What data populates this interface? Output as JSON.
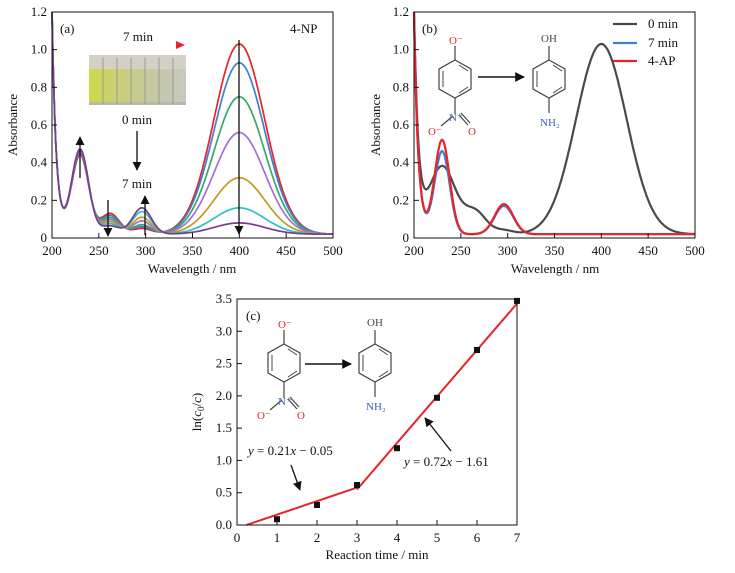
{
  "chart_data": [
    {
      "type": "line",
      "panel_label": "(a)",
      "corner_label": "4-NP",
      "xlabel": "Wavelength / nm",
      "ylabel": "Absorbance",
      "xlim": [
        200,
        500
      ],
      "ylim": [
        0,
        1.2
      ],
      "x_ticks": [
        "200",
        "250",
        "300",
        "350",
        "400",
        "450",
        "500"
      ],
      "y_ticks": [
        "0",
        "0.2",
        "0.4",
        "0.6",
        "0.8",
        "1.0",
        "1.2"
      ],
      "series": [
        {
          "color": "#e8232a",
          "peak400": 1.01,
          "s230": 0.42,
          "s295": 0.03
        },
        {
          "color": "#3f7fd0",
          "peak400": 0.91,
          "s230": 0.43,
          "s295": 0.04
        },
        {
          "color": "#3aa66a",
          "peak400": 0.73,
          "s230": 0.44,
          "s295": 0.05
        },
        {
          "color": "#a46fd2",
          "peak400": 0.54,
          "s230": 0.44,
          "s295": 0.07
        },
        {
          "color": "#c39a1f",
          "peak400": 0.3,
          "s230": 0.45,
          "s295": 0.09
        },
        {
          "color": "#28c2c6",
          "peak400": 0.14,
          "s230": 0.45,
          "s295": 0.12
        },
        {
          "color": "#7a3c8a",
          "peak400": 0.06,
          "s230": 0.45,
          "s295": 0.14
        }
      ],
      "annotations": {
        "time_arrow": "7 min",
        "start_time": "0 min",
        "end_time": "7 min"
      },
      "grid": false
    },
    {
      "type": "line",
      "panel_label": "(b)",
      "xlabel": "Wavelength / nm",
      "ylabel": "Absorbance",
      "xlim": [
        200,
        500
      ],
      "ylim": [
        0,
        1.2
      ],
      "x_ticks": [
        "200",
        "250",
        "300",
        "350",
        "400",
        "450",
        "500"
      ],
      "y_ticks": [
        "0",
        "0.2",
        "0.4",
        "0.6",
        "0.8",
        "1.0",
        "1.2"
      ],
      "legend_position": "top-right",
      "series": [
        {
          "name": "0 min",
          "color": "#4a4a4a",
          "peak400": 1.01,
          "p230": 0.36,
          "p295": 0.02
        },
        {
          "name": "7 min",
          "color": "#3f7fd0",
          "peak400": 0.0,
          "p230": 0.44,
          "p295": 0.15
        },
        {
          "name": "4-AP",
          "color": "#e8232a",
          "peak400": 0.0,
          "p230": 0.5,
          "p295": 0.16
        }
      ],
      "grid": false
    },
    {
      "type": "scatter",
      "panel_label": "(c)",
      "xlabel": "Reaction time / min",
      "ylabel": "ln(c0/c)",
      "xlim": [
        0,
        7
      ],
      "ylim": [
        0,
        3.5
      ],
      "x_ticks": [
        "0",
        "1",
        "2",
        "3",
        "4",
        "5",
        "6",
        "7"
      ],
      "y_ticks": [
        "0.0",
        "0.5",
        "1.0",
        "1.5",
        "2.0",
        "2.5",
        "3.0",
        "3.5"
      ],
      "points": [
        {
          "x": 1,
          "y": 0.09
        },
        {
          "x": 2,
          "y": 0.31
        },
        {
          "x": 3,
          "y": 0.62
        },
        {
          "x": 4,
          "y": 1.19
        },
        {
          "x": 5,
          "y": 1.97
        },
        {
          "x": 6,
          "y": 2.71
        },
        {
          "x": 7,
          "y": 3.47
        }
      ],
      "fits": [
        {
          "equation_parts": [
            "y",
            " = 0.21",
            "x",
            " − 0.05"
          ],
          "slope": 0.21,
          "intercept": -0.05,
          "x_range": [
            0.24,
            3
          ]
        },
        {
          "equation_parts": [
            "y",
            " = 0.72",
            "x",
            " − 1.61"
          ],
          "slope": 0.72,
          "intercept": -1.61,
          "x_range": [
            3,
            7
          ]
        }
      ],
      "grid": false
    }
  ],
  "molecules": {
    "nitro_o_minus": "O⁻",
    "n_plus": "N⁺",
    "n_o": "O",
    "n_o_minus": "O⁻",
    "oh": "OH",
    "nh2": "NH₂"
  },
  "colors": {
    "axis": "#111111",
    "fit_line": "#e8232a",
    "nitro_atoms": "#e8232a",
    "amine_atoms": "#3a62b8"
  }
}
